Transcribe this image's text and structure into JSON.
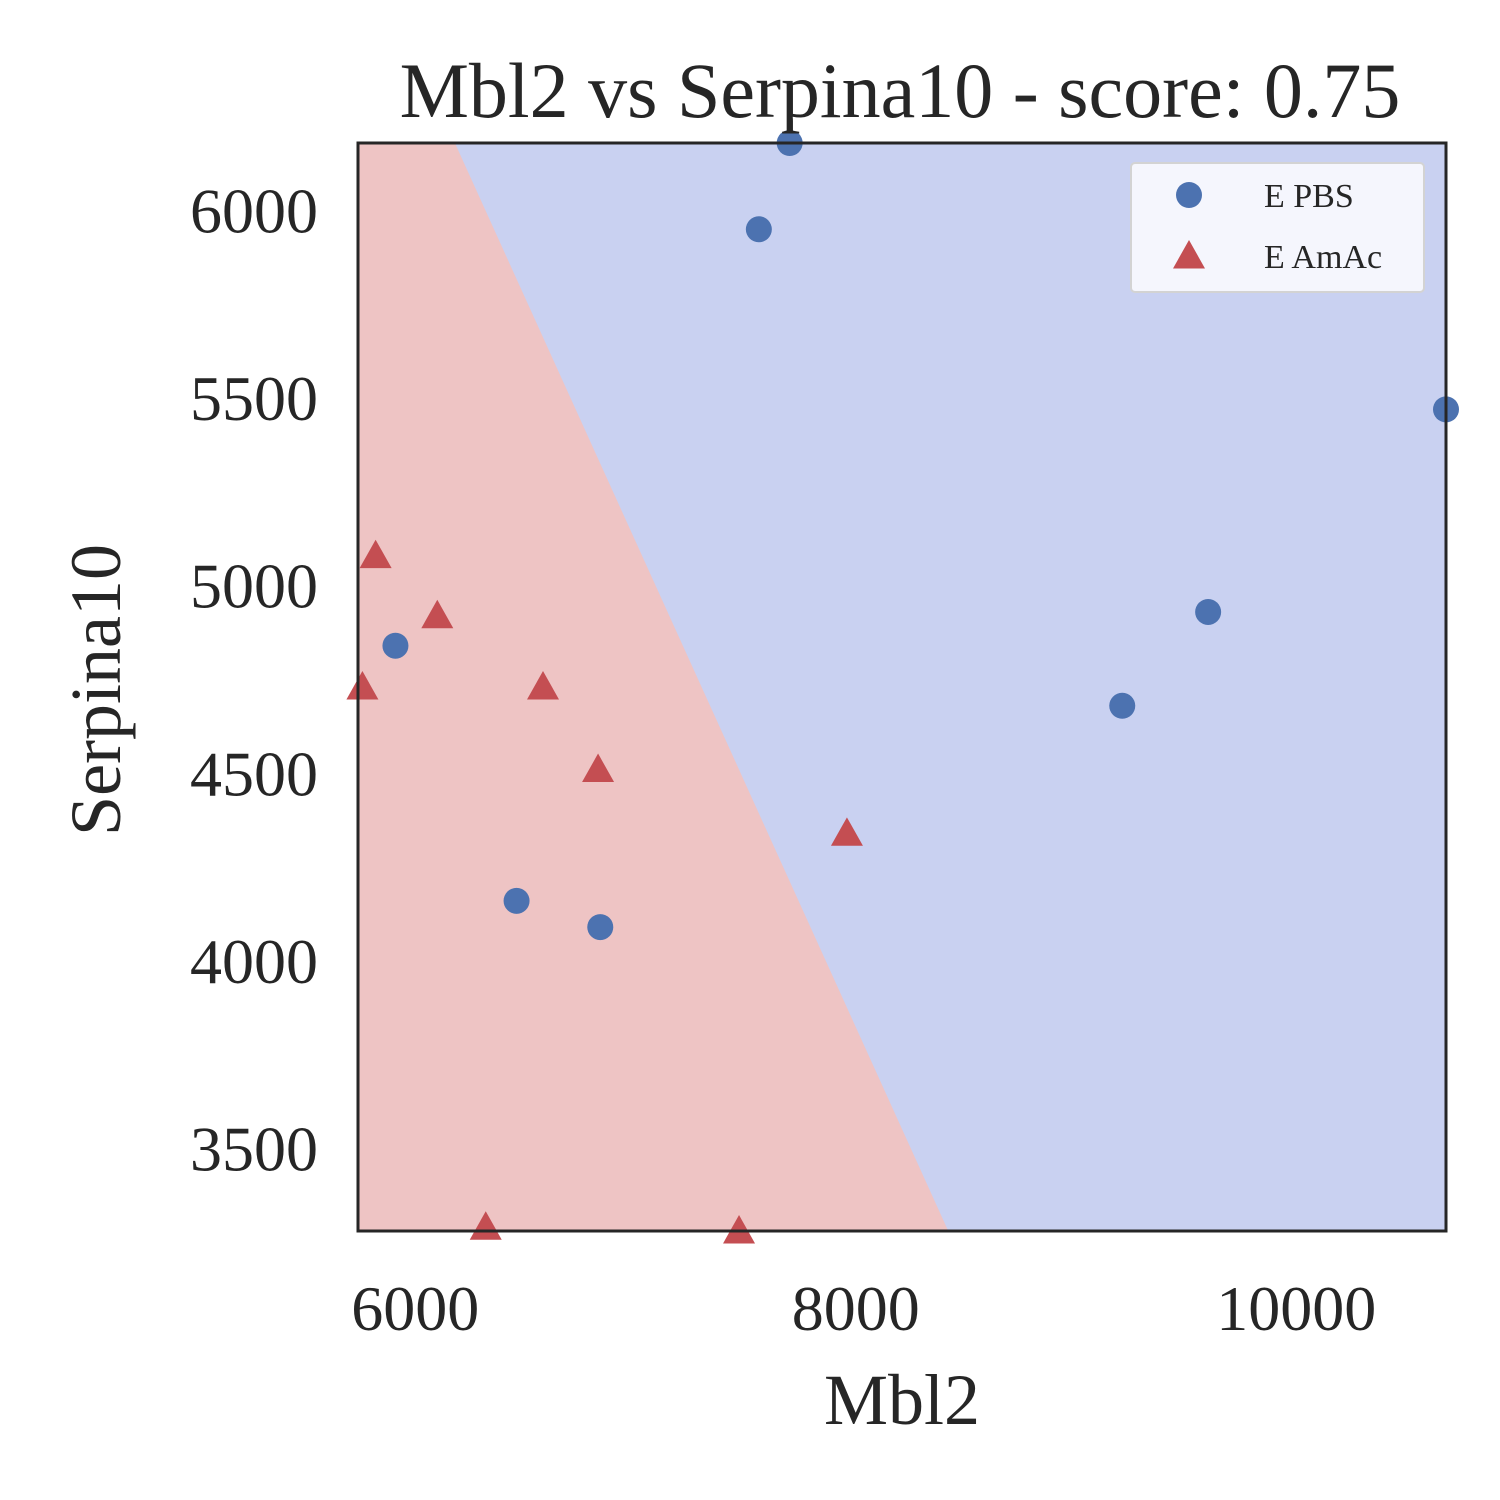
{
  "chart_data": {
    "type": "scatter",
    "title": "Mbl2 vs Serpina10 - score: 0.75",
    "xlabel": "Mbl2",
    "ylabel": "Serpina10",
    "xlim": [
      5740,
      10680
    ],
    "ylim": [
      3280,
      6180
    ],
    "xticks": [
      6000,
      8000,
      10000
    ],
    "yticks": [
      3500,
      4000,
      4500,
      5000,
      5500,
      6000
    ],
    "grid": false,
    "legend_position": "top-right",
    "decision_boundary": {
      "points": [
        [
          6180,
          6180
        ],
        [
          8420,
          3280
        ]
      ],
      "left_class": "E AmAc",
      "right_class": "E PBS",
      "left_color": "#eec4c4",
      "right_color": "#c9d1f1"
    },
    "series": [
      {
        "name": "E PBS",
        "marker": "circle",
        "color": "#4c72b0",
        "points": [
          [
            7700,
            6180
          ],
          [
            7560,
            5950
          ],
          [
            10680,
            5470
          ],
          [
            9600,
            4930
          ],
          [
            9210,
            4680
          ],
          [
            5910,
            4840
          ],
          [
            6460,
            4160
          ],
          [
            6840,
            4090
          ]
        ]
      },
      {
        "name": "E AmAc",
        "marker": "triangle",
        "color": "#c44e52",
        "points": [
          [
            5820,
            5080
          ],
          [
            6100,
            4920
          ],
          [
            5760,
            4730
          ],
          [
            6580,
            4730
          ],
          [
            6830,
            4510
          ],
          [
            7960,
            4340
          ],
          [
            6320,
            3290
          ],
          [
            7470,
            3280
          ]
        ]
      }
    ]
  }
}
